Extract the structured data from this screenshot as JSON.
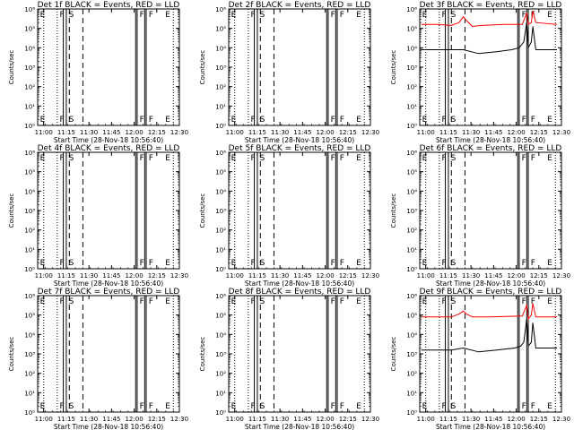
{
  "common": {
    "xlabel": "Start Time (28-Nov-18 10:56:40)",
    "ylabel": "Counts/sec",
    "xtick_labels": [
      "11:00",
      "11:15",
      "11:30",
      "11:45",
      "12:00",
      "12:15",
      "12:30"
    ],
    "ytick_labels": [
      "10⁰",
      "10¹",
      "10²",
      "10³",
      "10⁴",
      "10⁵",
      "10⁶"
    ],
    "marker_labels": [
      "E",
      "F",
      "S",
      "F",
      "F",
      "E"
    ],
    "event_color": "#000000",
    "lld_color": "#ff0000"
  },
  "chart_data": [
    {
      "type": "line",
      "title": "Det 1f BLACK = Events, RED = LLD",
      "series": []
    },
    {
      "type": "line",
      "title": "Det 2f BLACK = Events, RED = LLD",
      "series": []
    },
    {
      "type": "line",
      "title": "Det 3f BLACK = Events, RED = LLD",
      "series": [
        {
          "color": "#ff0000",
          "points": [
            [
              0,
              5.2
            ],
            [
              10,
              5.2
            ],
            [
              20,
              5.15
            ],
            [
              25,
              5.3
            ],
            [
              28,
              5.6
            ],
            [
              30,
              5.4
            ],
            [
              34,
              5.1
            ],
            [
              40,
              5.15
            ],
            [
              55,
              5.2
            ],
            [
              67,
              5.2
            ],
            [
              70,
              5.8
            ],
            [
              71,
              5.2
            ],
            [
              73,
              5.3
            ],
            [
              74,
              5.9
            ],
            [
              76,
              5.3
            ],
            [
              90,
              5.2
            ]
          ]
        },
        {
          "color": "#000000",
          "points": [
            [
              0,
              3.9
            ],
            [
              10,
              3.9
            ],
            [
              20,
              3.9
            ],
            [
              28,
              3.9
            ],
            [
              38,
              3.7
            ],
            [
              50,
              3.8
            ],
            [
              60,
              3.9
            ],
            [
              65,
              4.0
            ],
            [
              68,
              4.3
            ],
            [
              70,
              5.3
            ],
            [
              71,
              4.0
            ],
            [
              73,
              4.3
            ],
            [
              74,
              5.1
            ],
            [
              76,
              3.9
            ],
            [
              90,
              3.9
            ]
          ]
        }
      ]
    },
    {
      "type": "line",
      "title": "Det 4f BLACK = Events, RED = LLD",
      "series": []
    },
    {
      "type": "line",
      "title": "Det 5f BLACK = Events, RED = LLD",
      "series": []
    },
    {
      "type": "line",
      "title": "Det 6f BLACK = Events, RED = LLD",
      "series": []
    },
    {
      "type": "line",
      "title": "Det 7f BLACK = Events, RED = LLD",
      "series": []
    },
    {
      "type": "line",
      "title": "Det 8f BLACK = Events, RED = LLD",
      "series": []
    },
    {
      "type": "line",
      "title": "Det 9f BLACK = Events, RED = LLD",
      "series": [
        {
          "color": "#ff0000",
          "points": [
            [
              0,
              4.9
            ],
            [
              10,
              4.9
            ],
            [
              20,
              4.9
            ],
            [
              25,
              5.05
            ],
            [
              28,
              5.2
            ],
            [
              30,
              5.05
            ],
            [
              34,
              4.9
            ],
            [
              45,
              4.9
            ],
            [
              67,
              4.95
            ],
            [
              70,
              5.5
            ],
            [
              71,
              4.8
            ],
            [
              73,
              5.0
            ],
            [
              74,
              5.6
            ],
            [
              76,
              4.9
            ],
            [
              90,
              4.9
            ]
          ]
        },
        {
          "color": "#000000",
          "points": [
            [
              0,
              3.2
            ],
            [
              10,
              3.2
            ],
            [
              20,
              3.2
            ],
            [
              28,
              3.3
            ],
            [
              38,
              3.1
            ],
            [
              50,
              3.2
            ],
            [
              62,
              3.3
            ],
            [
              66,
              3.4
            ],
            [
              68,
              3.6
            ],
            [
              70,
              4.8
            ],
            [
              71,
              3.4
            ],
            [
              73,
              3.6
            ],
            [
              74,
              4.6
            ],
            [
              76,
              3.3
            ],
            [
              90,
              3.3
            ]
          ]
        }
      ]
    }
  ],
  "x_range": [
    -1,
    93
  ],
  "y_log_range": [
    0,
    6
  ],
  "markers": {
    "dotted": [
      -1,
      3,
      12,
      89
    ],
    "dashed": [
      20,
      29
    ],
    "solid": [
      16,
      18,
      64,
      65,
      70,
      71
    ]
  }
}
